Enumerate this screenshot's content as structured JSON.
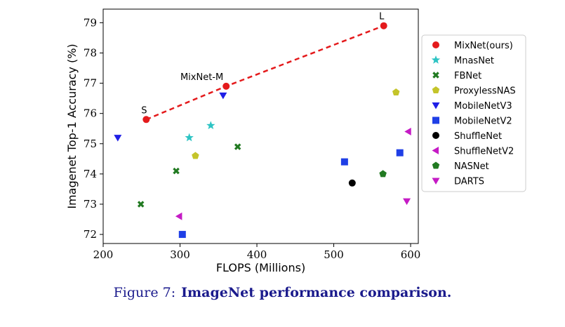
{
  "chart_data": {
    "type": "scatter",
    "xlabel": "FLOPS (Millions)",
    "ylabel": "Imagenet Top-1 Accuracy (%)",
    "xlim": [
      200,
      610
    ],
    "ylim": [
      71.7,
      79.45
    ],
    "xticks": [
      200,
      300,
      400,
      500,
      600
    ],
    "yticks": [
      72,
      73,
      74,
      75,
      76,
      77,
      78,
      79
    ],
    "legend_position": "right",
    "series": [
      {
        "name": "MixNet(ours)",
        "marker": "circle",
        "color": "#e41a1c",
        "points": [
          {
            "x": 256,
            "y": 75.8
          },
          {
            "x": 360,
            "y": 76.9
          },
          {
            "x": 565,
            "y": 78.9
          }
        ],
        "line": true,
        "line_color": "#e41a1c",
        "line_style": "dashed"
      },
      {
        "name": "MnasNet",
        "marker": "star",
        "color": "#2ec4c4",
        "points": [
          {
            "x": 312,
            "y": 75.2
          },
          {
            "x": 340,
            "y": 75.6
          }
        ]
      },
      {
        "name": "FBNet",
        "marker": "x-thick",
        "color": "#217a21",
        "points": [
          {
            "x": 249,
            "y": 73.0
          },
          {
            "x": 295,
            "y": 74.1
          },
          {
            "x": 375,
            "y": 74.9
          }
        ]
      },
      {
        "name": "ProxylessNAS",
        "marker": "pentagon",
        "color": "#c4c42a",
        "points": [
          {
            "x": 320,
            "y": 74.6
          },
          {
            "x": 581,
            "y": 76.7
          }
        ]
      },
      {
        "name": "MobileNetV3",
        "marker": "triangle-down",
        "color": "#1f1fe6",
        "points": [
          {
            "x": 219,
            "y": 75.2
          },
          {
            "x": 356,
            "y": 76.6
          }
        ]
      },
      {
        "name": "MobileNetV2",
        "marker": "square",
        "color": "#1f3fe6",
        "points": [
          {
            "x": 303,
            "y": 72.0
          },
          {
            "x": 514,
            "y": 74.4
          },
          {
            "x": 586,
            "y": 74.7
          }
        ]
      },
      {
        "name": "ShuffleNet",
        "marker": "circle",
        "color": "#000000",
        "points": [
          {
            "x": 524,
            "y": 73.7
          }
        ]
      },
      {
        "name": "ShuffleNetV2",
        "marker": "triangle-left",
        "color": "#c51bc5",
        "points": [
          {
            "x": 299,
            "y": 72.6
          },
          {
            "x": 597,
            "y": 75.4
          }
        ]
      },
      {
        "name": "NASNet",
        "marker": "pentagon",
        "color": "#217a21",
        "points": [
          {
            "x": 564,
            "y": 74.0
          }
        ]
      },
      {
        "name": "DARTS",
        "marker": "triangle-down",
        "color": "#c51bc5",
        "points": [
          {
            "x": 595,
            "y": 73.1
          }
        ]
      }
    ],
    "annotations": [
      {
        "text": "S",
        "x": 256,
        "y": 75.8
      },
      {
        "text": "MixNet-M",
        "x": 360,
        "y": 76.9
      },
      {
        "text": "L",
        "x": 565,
        "y": 78.9
      }
    ]
  },
  "caption": {
    "label": "Figure 7:",
    "title": "ImageNet performance comparison."
  }
}
